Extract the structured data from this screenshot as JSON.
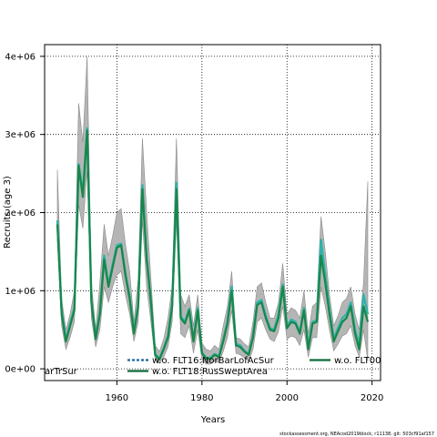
{
  "chart_data": {
    "type": "line",
    "xlabel": "Years",
    "ylabel": "Recruits (age 3)",
    "xlim": [
      1943,
      2022
    ],
    "ylim": [
      -150000,
      4150000
    ],
    "x_ticks": [
      1960,
      1980,
      2000,
      2020
    ],
    "y_ticks": [
      0,
      1000000,
      2000000,
      3000000,
      4000000
    ],
    "y_tick_labels": [
      "0e+00",
      "1e+06",
      "2e+06",
      "3e+06",
      "4e+06"
    ],
    "grid": true,
    "legend_position": "bottom",
    "legend_entries": [
      {
        "label": "arTrSur",
        "color": "#2e5aa8",
        "style": "solid"
      },
      {
        "label": "w.o. FLT16:NorBarLofAcSur",
        "color": "#1a66a0",
        "style": "dashed"
      },
      {
        "label": "w.o. FLT18:RusSweptArea",
        "color": "#0e6b3a",
        "style": "solid"
      },
      {
        "label": "w.o. FLT00",
        "color": "#0e6b3a",
        "style": "solid"
      }
    ],
    "colors": {
      "band": "#b5b5b5",
      "band_edge": "#8a8a8a",
      "teal": "#2fb3aa",
      "blue": "#2a72b8",
      "green": "#17874a"
    },
    "x": [
      1946,
      1947,
      1948,
      1949,
      1950,
      1951,
      1952,
      1953,
      1954,
      1955,
      1956,
      1957,
      1958,
      1959,
      1960,
      1961,
      1962,
      1963,
      1964,
      1965,
      1966,
      1967,
      1968,
      1969,
      1970,
      1971,
      1972,
      1973,
      1974,
      1975,
      1976,
      1977,
      1978,
      1979,
      1980,
      1981,
      1982,
      1983,
      1984,
      1985,
      1986,
      1987,
      1988,
      1989,
      1990,
      1991,
      1992,
      1993,
      1994,
      1995,
      1996,
      1997,
      1998,
      1999,
      2000,
      2001,
      2002,
      2003,
      2004,
      2005,
      2006,
      2007,
      2008,
      2009,
      2010,
      2011,
      2012,
      2013,
      2014,
      2015,
      2016,
      2017,
      2018,
      2019
    ],
    "series": [
      {
        "role": "estimate",
        "values": [
          1850000,
          700000,
          350000,
          550000,
          750000,
          2600000,
          2200000,
          3050000,
          850000,
          380000,
          700000,
          1400000,
          1050000,
          1300000,
          1550000,
          1580000,
          1200000,
          900000,
          450000,
          800000,
          2300000,
          1400000,
          850000,
          180000,
          120000,
          250000,
          400000,
          800000,
          2300000,
          650000,
          580000,
          750000,
          350000,
          750000,
          200000,
          130000,
          130000,
          180000,
          150000,
          350000,
          580000,
          1000000,
          300000,
          280000,
          220000,
          180000,
          400000,
          820000,
          850000,
          650000,
          500000,
          480000,
          650000,
          1050000,
          520000,
          600000,
          580000,
          450000,
          750000,
          250000,
          580000,
          600000,
          1450000,
          1100000,
          700000,
          350000,
          480000,
          600000,
          650000,
          800000,
          450000,
          250000,
          800000,
          600000
        ]
      },
      {
        "role": "upper",
        "values": [
          2550000,
          900000,
          500000,
          700000,
          1000000,
          3400000,
          2900000,
          4000000,
          1100000,
          500000,
          1100000,
          1850000,
          1450000,
          1700000,
          2000000,
          2050000,
          1600000,
          1250000,
          600000,
          1150000,
          2950000,
          2000000,
          1150000,
          300000,
          220000,
          380000,
          650000,
          1050000,
          2950000,
          950000,
          800000,
          950000,
          550000,
          950000,
          330000,
          250000,
          230000,
          300000,
          250000,
          550000,
          800000,
          1250000,
          400000,
          380000,
          320000,
          280000,
          600000,
          1050000,
          1100000,
          850000,
          650000,
          650000,
          850000,
          1350000,
          700000,
          780000,
          750000,
          650000,
          1000000,
          450000,
          800000,
          850000,
          1950000,
          1500000,
          950000,
          550000,
          680000,
          850000,
          900000,
          1050000,
          700000,
          500000,
          1100000,
          2400000
        ]
      },
      {
        "role": "lower",
        "values": [
          1650000,
          550000,
          250000,
          400000,
          600000,
          2100000,
          1800000,
          2550000,
          650000,
          280000,
          500000,
          1050000,
          850000,
          1050000,
          1200000,
          1250000,
          950000,
          700000,
          350000,
          600000,
          1900000,
          1050000,
          600000,
          120000,
          70000,
          150000,
          280000,
          600000,
          1900000,
          450000,
          400000,
          550000,
          200000,
          500000,
          120000,
          60000,
          60000,
          100000,
          80000,
          220000,
          400000,
          750000,
          200000,
          180000,
          140000,
          100000,
          250000,
          600000,
          650000,
          500000,
          380000,
          350000,
          480000,
          800000,
          380000,
          420000,
          400000,
          300000,
          500000,
          150000,
          400000,
          400000,
          1050000,
          800000,
          500000,
          230000,
          320000,
          420000,
          450000,
          550000,
          300000,
          150000,
          500000,
          100000
        ]
      },
      {
        "role": "variant",
        "values": [
          1900000,
          750000,
          370000,
          580000,
          780000,
          2620000,
          2250000,
          3080000,
          880000,
          400000,
          720000,
          1450000,
          1080000,
          1330000,
          1580000,
          1600000,
          1230000,
          930000,
          470000,
          830000,
          2350000,
          1430000,
          880000,
          190000,
          130000,
          260000,
          420000,
          830000,
          2380000,
          670000,
          600000,
          770000,
          370000,
          780000,
          210000,
          140000,
          140000,
          190000,
          160000,
          370000,
          600000,
          1050000,
          320000,
          300000,
          230000,
          190000,
          420000,
          850000,
          880000,
          680000,
          520000,
          500000,
          700000,
          1080000,
          550000,
          630000,
          600000,
          470000,
          780000,
          280000,
          600000,
          620000,
          1650000,
          1200000,
          760000,
          380000,
          520000,
          650000,
          700000,
          850000,
          500000,
          300000,
          950000,
          700000
        ]
      }
    ],
    "footer": "stockassessment.org, NEAcod2019block, r11138, git: 503cf91af157"
  }
}
